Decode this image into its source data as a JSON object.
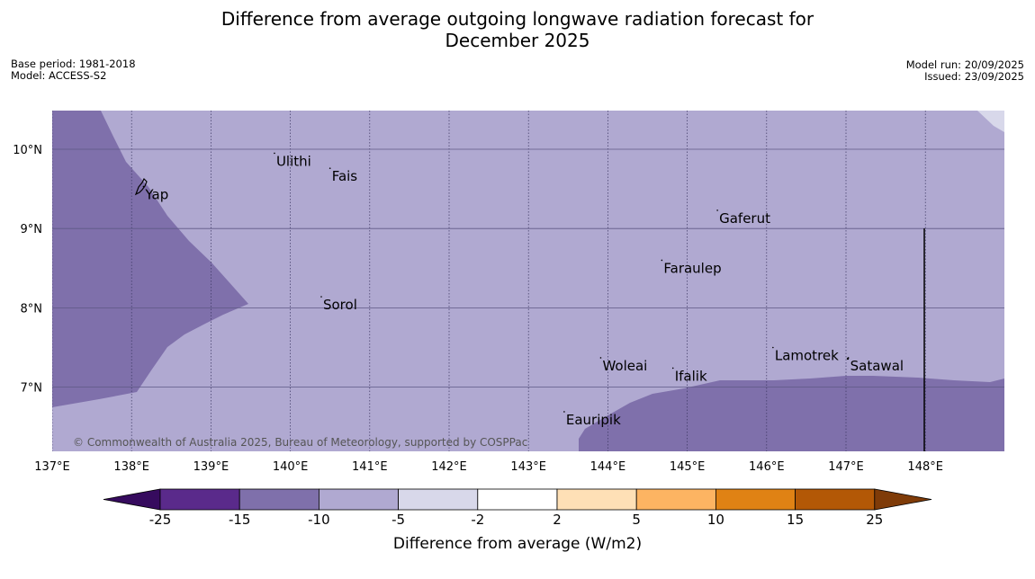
{
  "title": {
    "line1": "Difference from average outgoing longwave radiation forecast for",
    "line2": "December 2025"
  },
  "meta": {
    "base_period": "Base period: 1981-2018",
    "model": "Model: ACCESS-S2",
    "model_run": "Model run: 20/09/2025",
    "issued": "Issued: 23/09/2025"
  },
  "map": {
    "lon_range": [
      137.0,
      149.0
    ],
    "lat_range": [
      6.2,
      10.5
    ],
    "lon_ticks": [
      {
        "value": 137,
        "label": "137°E"
      },
      {
        "value": 138,
        "label": "138°E"
      },
      {
        "value": 139,
        "label": "139°E"
      },
      {
        "value": 140,
        "label": "140°E"
      },
      {
        "value": 141,
        "label": "141°E"
      },
      {
        "value": 142,
        "label": "142°E"
      },
      {
        "value": 143,
        "label": "143°E"
      },
      {
        "value": 144,
        "label": "144°E"
      },
      {
        "value": 145,
        "label": "145°E"
      },
      {
        "value": 146,
        "label": "146°E"
      },
      {
        "value": 147,
        "label": "147°E"
      },
      {
        "value": 148,
        "label": "148°E"
      }
    ],
    "lat_ticks": [
      {
        "value": 10,
        "label": "10°N"
      },
      {
        "value": 9,
        "label": "9°N"
      },
      {
        "value": 8,
        "label": "8°N"
      },
      {
        "value": 7,
        "label": "7°N"
      }
    ],
    "places": [
      {
        "name": "Ulithi",
        "lon": 139.8,
        "lat": 9.95
      },
      {
        "name": "Fais",
        "lon": 140.5,
        "lat": 9.76
      },
      {
        "name": "Yap",
        "lon": 138.15,
        "lat": 9.53
      },
      {
        "name": "Gaferut",
        "lon": 145.38,
        "lat": 9.23
      },
      {
        "name": "Faraulep",
        "lon": 144.68,
        "lat": 8.6
      },
      {
        "name": "Sorol",
        "lon": 140.39,
        "lat": 8.14
      },
      {
        "name": "Lamotrek",
        "lon": 146.08,
        "lat": 7.5
      },
      {
        "name": "Woleai",
        "lon": 143.91,
        "lat": 7.37
      },
      {
        "name": "Ifalik",
        "lon": 144.82,
        "lat": 7.24
      },
      {
        "name": "Satawal",
        "lon": 147.03,
        "lat": 7.37
      },
      {
        "name": "Eauripik",
        "lon": 143.45,
        "lat": 6.69
      }
    ],
    "credit": "© Commonwealth of Australia 2025, Bureau of Meteorology, supported by COSPPac",
    "base_color": "#b0a9d1",
    "anomaly_color": "#7f70ab",
    "light_color": "#d8d8ea"
  },
  "colorbar": {
    "title": "Difference from average (W/m2)",
    "labels": [
      "-25",
      "-15",
      "-10",
      "-5",
      "-2",
      "2",
      "5",
      "10",
      "15",
      "25"
    ],
    "colors": [
      "#360b5e",
      "#5a2a8b",
      "#7f70ab",
      "#b0a9d1",
      "#d8d8ea",
      "#ffffff",
      "#fee0b6",
      "#fdb462",
      "#e08214",
      "#b35806",
      "#7f3b08"
    ]
  }
}
